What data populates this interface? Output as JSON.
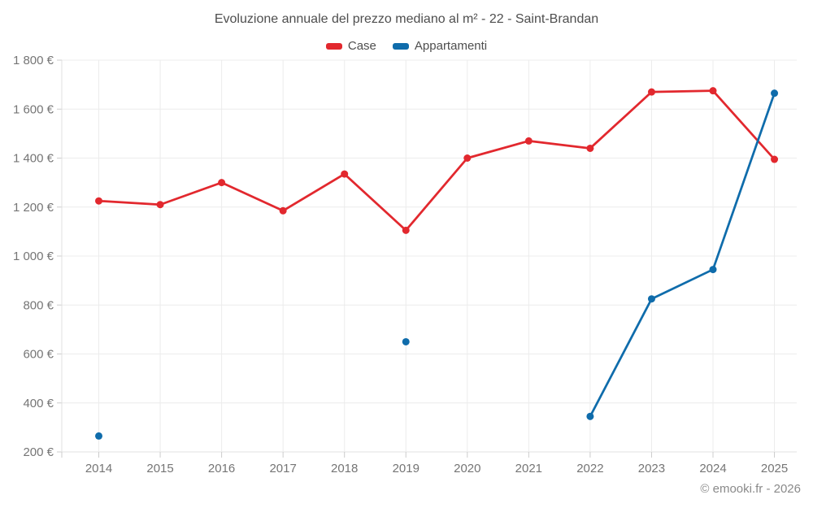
{
  "header": {
    "title": "Evoluzione annuale del prezzo mediano al m² - 22 - Saint-Brandan"
  },
  "legend": [
    {
      "label": "Case",
      "color": "#e2282e"
    },
    {
      "label": "Appartamenti",
      "color": "#0f6cab"
    }
  ],
  "footer": {
    "attribution": "© emooki.fr - 2026"
  },
  "chart_data": {
    "type": "line",
    "title": "Evoluzione annuale del prezzo mediano al m² - 22 - Saint-Brandan",
    "categories": [
      "2014",
      "2015",
      "2016",
      "2017",
      "2018",
      "2019",
      "2020",
      "2021",
      "2022",
      "2023",
      "2024",
      "2025"
    ],
    "series": [
      {
        "name": "Case",
        "color": "#e2282e",
        "values": [
          1225,
          1210,
          1300,
          1185,
          1335,
          1105,
          1400,
          1470,
          1440,
          1670,
          1675,
          1395
        ]
      },
      {
        "name": "Appartamenti",
        "color": "#0f6cab",
        "values": [
          265,
          null,
          null,
          null,
          null,
          650,
          null,
          null,
          345,
          825,
          945,
          1665
        ]
      }
    ],
    "xlabel": "",
    "ylabel": "",
    "y_unit": "€",
    "ylim": [
      200,
      1800
    ],
    "y_tick_step": 200,
    "grid": true,
    "legend_position": "top",
    "colors": {
      "gridline": "#ececec",
      "axis_line": "#e0e0e0",
      "tick": "#cccccc",
      "axis_label": "#757575"
    }
  }
}
